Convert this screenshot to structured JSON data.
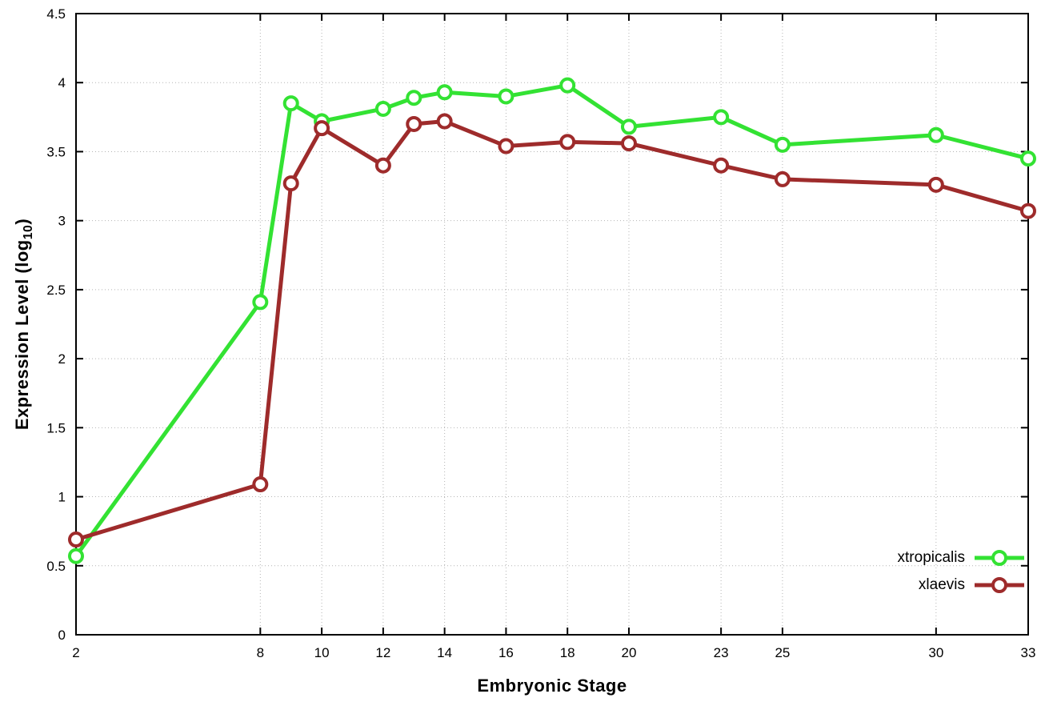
{
  "chart_data": {
    "type": "line",
    "title": "",
    "xlabel": "Embryonic Stage",
    "ylabel": "Expression Level (log10)",
    "ylabel_parts": {
      "pre": "Expression Level (log",
      "sub": "10",
      "post": ")"
    },
    "x": [
      2,
      8,
      9,
      10,
      12,
      13,
      14,
      16,
      18,
      20,
      23,
      25,
      30,
      33
    ],
    "series": [
      {
        "name": "xtropicalis",
        "color": "#33e233",
        "values": [
          0.57,
          2.41,
          3.85,
          3.72,
          3.81,
          3.89,
          3.93,
          3.9,
          3.98,
          3.68,
          3.75,
          3.55,
          3.62,
          3.45
        ]
      },
      {
        "name": "xlaevis",
        "color": "#9e2b2b",
        "values": [
          0.69,
          1.09,
          3.27,
          3.67,
          3.4,
          3.7,
          3.72,
          3.54,
          3.57,
          3.56,
          3.4,
          3.3,
          3.26,
          3.07
        ]
      }
    ],
    "xlim": [
      2,
      33
    ],
    "ylim": [
      0,
      4.5
    ],
    "xticks": [
      2,
      8,
      10,
      12,
      14,
      16,
      18,
      20,
      23,
      25,
      30,
      33
    ],
    "xtick_labels": [
      "2",
      "8",
      "10",
      "12",
      "14",
      "16",
      "18",
      "20",
      "23",
      "25",
      "30",
      "33"
    ],
    "yticks": [
      0,
      0.5,
      1,
      1.5,
      2,
      2.5,
      3,
      3.5,
      4,
      4.5
    ],
    "ytick_labels": [
      "0",
      "0.5",
      "1",
      "1.5",
      "2",
      "2.5",
      "3",
      "3.5",
      "4",
      "4.5"
    ],
    "grid": true,
    "legend_position": "bottom-right-inside",
    "grid_color": "#b4b4b4",
    "axis_color": "#000000",
    "background": "#ffffff"
  }
}
